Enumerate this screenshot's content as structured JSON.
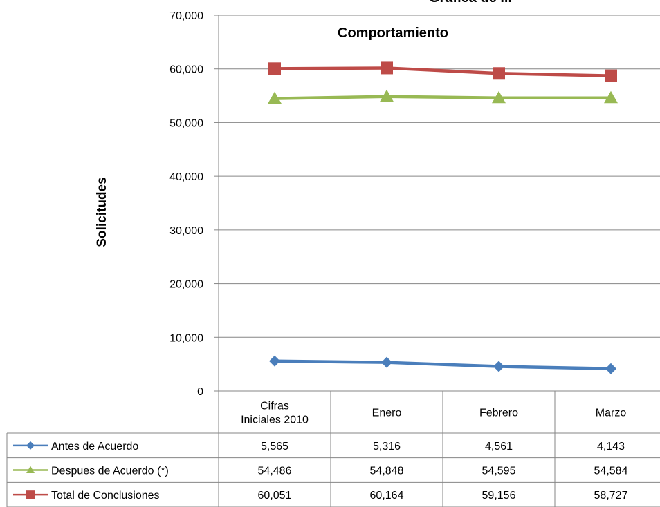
{
  "chart_data": {
    "type": "line",
    "title": "Comportamiento",
    "top_clipped_text": "Grafica de ...",
    "ylabel": "Solicitudes",
    "xlabel": "",
    "ylim": [
      0,
      70000
    ],
    "yticks": [
      "0",
      "10,000",
      "20,000",
      "30,000",
      "40,000",
      "50,000",
      "60,000",
      "70,000"
    ],
    "ytick_values": [
      0,
      10000,
      20000,
      30000,
      40000,
      50000,
      60000,
      70000
    ],
    "grid": true,
    "legend_placement": "data-table-left",
    "categories": [
      "Cifras Iniciales 2010",
      "Enero",
      "Febrero",
      "Marzo"
    ],
    "category_lines": [
      [
        "Cifras",
        "Iniciales 2010"
      ],
      [
        "Enero"
      ],
      [
        "Febrero"
      ],
      [
        "Marzo"
      ]
    ],
    "series": [
      {
        "name": "Antes de Acuerdo",
        "values": [
          5565,
          5316,
          4561,
          4143
        ],
        "labels": [
          "5,565",
          "5,316",
          "4,561",
          "4,143"
        ],
        "color": "#4a7ebb",
        "marker": "diamond"
      },
      {
        "name": "Despues  de Acuerdo (*)",
        "values": [
          54486,
          54848,
          54595,
          54584
        ],
        "labels": [
          "54,486",
          "54,848",
          "54,595",
          "54,584"
        ],
        "color": "#98b954",
        "marker": "triangle"
      },
      {
        "name": "Total de Conclusiones",
        "values": [
          60051,
          60164,
          59156,
          58727
        ],
        "labels": [
          "60,051",
          "60,164",
          "59,156",
          "58,727"
        ],
        "color": "#be4b48",
        "marker": "square"
      }
    ]
  }
}
